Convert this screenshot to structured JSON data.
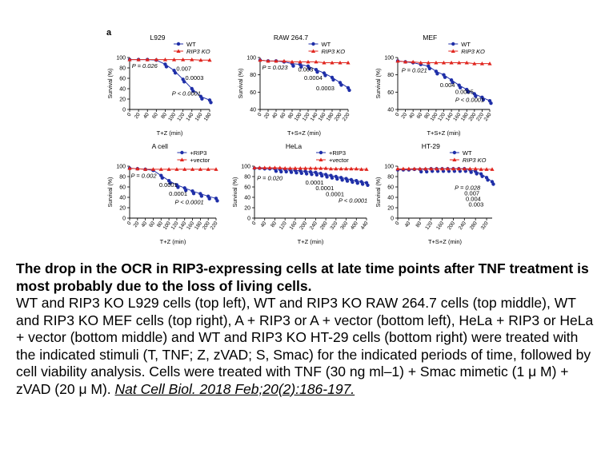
{
  "figure_label": "a",
  "caption": {
    "title": "The drop in the OCR in RIP3-expressing cells at late time points after TNF treatment is most probably due to the loss of living cells.",
    "body": "WT and RIP3 KO L929 cells (top left), WT and RIP3 KO RAW 264.7 cells (top middle), WT and RIP3 KO MEF cells (top right), A + RIP3 or A + vector (bottom left), HeLa + RIP3 or HeLa + vector (bottom middle) and WT and RIP3 KO HT-29 cells (bottom right) were treated with the indicated stimuli (T, TNF; Z, zVAD; S, Smac) for the indicated periods of time, followed by cell viability analysis. Cells were treated with TNF (30 ng ml–1) + Smac mimetic (1 μ M) + zVAD (20 μ M).",
    "citation": "Nat Cell Biol. 2018 Feb;20(2):186-197."
  },
  "colors": {
    "blue": "#1f2fa8",
    "red": "#e0251e",
    "axis": "#000000"
  },
  "chart_data": [
    {
      "type": "scatter",
      "title": "L929",
      "xlabel": "T+Z (min)",
      "ylabel": "Survival (%)",
      "ylim": [
        0,
        100
      ],
      "yticks": [
        0,
        20,
        40,
        60,
        80,
        100
      ],
      "xlim": [
        0,
        180
      ],
      "xticks": [
        0,
        20,
        40,
        60,
        80,
        100,
        120,
        140,
        160,
        180
      ],
      "legend": {
        "position": "top-right",
        "entries": [
          "WT",
          "RIP3 KO"
        ]
      },
      "series": [
        {
          "name": "WT",
          "color": "blue",
          "x": [
            0,
            20,
            40,
            60,
            80,
            100,
            120,
            140,
            160,
            180
          ],
          "y": [
            96,
            96,
            96,
            95,
            87,
            75,
            58,
            40,
            25,
            18
          ]
        },
        {
          "name": "RIP3 KO",
          "color": "red",
          "x": [
            0,
            20,
            40,
            60,
            80,
            100,
            120,
            140,
            160,
            180
          ],
          "y": [
            96,
            96,
            96,
            96,
            96,
            96,
            96,
            96,
            95,
            95
          ]
        }
      ],
      "annotations": [
        {
          "text": "P = 0.026",
          "x": 5,
          "y": 80
        },
        {
          "text": "0.007",
          "x": 105,
          "y": 75
        },
        {
          "text": "0.0003",
          "x": 125,
          "y": 57
        },
        {
          "text": "P < 0.0001",
          "x": 95,
          "y": 27
        }
      ]
    },
    {
      "type": "scatter",
      "title": "RAW 264.7",
      "xlabel": "T+S+Z (min)",
      "ylabel": "Survival (%)",
      "ylim": [
        40,
        100
      ],
      "yticks": [
        40,
        60,
        80,
        100
      ],
      "xlim": [
        0,
        220
      ],
      "xticks": [
        0,
        20,
        40,
        60,
        80,
        100,
        120,
        140,
        160,
        180,
        200,
        220
      ],
      "legend": {
        "position": "top-right",
        "entries": [
          "WT",
          "RIP3 KO"
        ]
      },
      "series": [
        {
          "name": "WT",
          "color": "blue",
          "x": [
            0,
            20,
            40,
            60,
            80,
            100,
            120,
            140,
            160,
            180,
            200,
            220
          ],
          "y": [
            97,
            96,
            96,
            95,
            93,
            92,
            90,
            86,
            82,
            77,
            71,
            65
          ]
        },
        {
          "name": "RIP3 KO",
          "color": "red",
          "x": [
            0,
            20,
            40,
            60,
            80,
            100,
            120,
            140,
            160,
            180,
            200,
            220
          ],
          "y": [
            97,
            96,
            96,
            96,
            95,
            95,
            95,
            95,
            94,
            94,
            94,
            94
          ]
        }
      ],
      "annotations": [
        {
          "text": "P = 0.023",
          "x": 5,
          "y": 86
        },
        {
          "text": "0.003",
          "x": 95,
          "y": 84
        },
        {
          "text": "0.0004",
          "x": 110,
          "y": 74
        },
        {
          "text": "0.0003",
          "x": 140,
          "y": 62
        }
      ]
    },
    {
      "type": "scatter",
      "title": "MEF",
      "xlabel": "T+S+Z (min)",
      "ylabel": "Survival (%)",
      "ylim": [
        40,
        100
      ],
      "yticks": [
        40,
        60,
        80,
        100
      ],
      "xlim": [
        0,
        240
      ],
      "xticks": [
        0,
        20,
        40,
        60,
        80,
        100,
        120,
        140,
        160,
        180,
        200,
        220,
        240
      ],
      "legend": {
        "position": "top-right",
        "entries": [
          "WT",
          "RIP3 KO"
        ]
      },
      "series": [
        {
          "name": "WT",
          "color": "blue",
          "x": [
            0,
            20,
            40,
            60,
            80,
            100,
            120,
            140,
            160,
            180,
            200,
            220,
            240
          ],
          "y": [
            96,
            95,
            94,
            92,
            90,
            84,
            80,
            74,
            68,
            63,
            58,
            54,
            50
          ]
        },
        {
          "name": "RIP3 KO",
          "color": "red",
          "x": [
            0,
            20,
            40,
            60,
            80,
            100,
            120,
            140,
            160,
            180,
            200,
            220,
            240
          ],
          "y": [
            96,
            95,
            95,
            94,
            94,
            94,
            94,
            94,
            94,
            94,
            93,
            93,
            93
          ]
        }
      ],
      "annotations": [
        {
          "text": "P = 0.021",
          "x": 10,
          "y": 83
        },
        {
          "text": "0.004",
          "x": 110,
          "y": 66
        },
        {
          "text": "0.0005",
          "x": 150,
          "y": 58
        },
        {
          "text": "P < 0.0001",
          "x": 150,
          "y": 49
        }
      ]
    },
    {
      "type": "scatter",
      "title": "A cell",
      "xlabel": "T+Z (min)",
      "ylabel": "Survival (%)",
      "ylim": [
        0,
        100
      ],
      "yticks": [
        0,
        20,
        40,
        60,
        80,
        100
      ],
      "xlim": [
        0,
        220
      ],
      "xticks": [
        0,
        20,
        40,
        60,
        80,
        100,
        120,
        140,
        160,
        180,
        200,
        220
      ],
      "legend": {
        "position": "top-right",
        "entries": [
          "+RIP3",
          "+vector"
        ]
      },
      "series": [
        {
          "name": "+RIP3",
          "color": "blue",
          "x": [
            0,
            20,
            40,
            60,
            80,
            100,
            120,
            140,
            160,
            180,
            200,
            220
          ],
          "y": [
            96,
            95,
            94,
            92,
            82,
            72,
            64,
            58,
            52,
            47,
            42,
            38
          ]
        },
        {
          "name": "+vector",
          "color": "red",
          "x": [
            0,
            20,
            40,
            60,
            80,
            100,
            120,
            140,
            160,
            180,
            200,
            220
          ],
          "y": [
            96,
            95,
            94,
            94,
            94,
            94,
            94,
            94,
            94,
            94,
            94,
            94
          ]
        }
      ],
      "annotations": [
        {
          "text": "P = 0.002",
          "x": 3,
          "y": 78
        },
        {
          "text": "0.0001",
          "x": 75,
          "y": 60
        },
        {
          "text": "0.0001",
          "x": 100,
          "y": 43
        },
        {
          "text": "P < 0.0001",
          "x": 115,
          "y": 27
        }
      ]
    },
    {
      "type": "scatter",
      "title": "HeLa",
      "xlabel": "T+Z (min)",
      "ylabel": "Survival (%)",
      "ylim": [
        0,
        100
      ],
      "yticks": [
        0,
        20,
        40,
        60,
        80,
        100
      ],
      "xlim": [
        0,
        440
      ],
      "xticks": [
        0,
        40,
        80,
        120,
        160,
        200,
        240,
        280,
        320,
        360,
        400,
        440
      ],
      "legend": {
        "position": "top-right",
        "entries": [
          "+RIP3",
          "+vector"
        ]
      },
      "series": [
        {
          "name": "+RIP3",
          "color": "blue",
          "x": [
            0,
            20,
            40,
            60,
            80,
            100,
            120,
            140,
            160,
            180,
            200,
            220,
            240,
            260,
            280,
            300,
            320,
            340,
            360,
            380,
            400,
            420,
            440
          ],
          "y": [
            96,
            96,
            95,
            95,
            95,
            94,
            94,
            93,
            92,
            91,
            90,
            89,
            88,
            86,
            84,
            82,
            80,
            78,
            76,
            74,
            72,
            70,
            68
          ]
        },
        {
          "name": "+vector",
          "color": "red",
          "x": [
            0,
            20,
            40,
            60,
            80,
            100,
            120,
            140,
            160,
            180,
            200,
            220,
            240,
            260,
            280,
            300,
            320,
            340,
            360,
            380,
            400,
            420,
            440
          ],
          "y": [
            97,
            97,
            97,
            97,
            97,
            97,
            96,
            96,
            96,
            96,
            96,
            96,
            96,
            96,
            96,
            95,
            95,
            95,
            95,
            95,
            95,
            94,
            94
          ]
        }
      ],
      "annotations": [
        {
          "text": "P = 0.020",
          "x": 10,
          "y": 73
        },
        {
          "text": "0.0001",
          "x": 200,
          "y": 65
        },
        {
          "text": "0.0001",
          "x": 240,
          "y": 54
        },
        {
          "text": "0.0001",
          "x": 280,
          "y": 42
        },
        {
          "text": "P < 0.0001",
          "x": 330,
          "y": 30
        }
      ]
    },
    {
      "type": "scatter",
      "title": "HT-29",
      "xlabel": "T+S+Z (min)",
      "ylabel": "Survival (%)",
      "ylim": [
        0,
        100
      ],
      "yticks": [
        0,
        20,
        40,
        60,
        80,
        100
      ],
      "xlim": [
        0,
        340
      ],
      "xticks": [
        0,
        40,
        80,
        120,
        160,
        200,
        240,
        280,
        320
      ],
      "legend": {
        "position": "top-right",
        "entries": [
          "WT",
          "RIP3 KO"
        ]
      },
      "series": [
        {
          "name": "WT",
          "color": "blue",
          "x": [
            0,
            20,
            40,
            60,
            80,
            100,
            120,
            140,
            160,
            180,
            200,
            220,
            240,
            260,
            280,
            300,
            320,
            340
          ],
          "y": [
            93,
            93,
            93,
            94,
            94,
            94,
            95,
            95,
            95,
            95,
            95,
            95,
            95,
            93,
            90,
            85,
            78,
            70
          ]
        },
        {
          "name": "RIP3 KO",
          "color": "red",
          "x": [
            0,
            20,
            40,
            60,
            80,
            100,
            120,
            140,
            160,
            180,
            200,
            220,
            240,
            260,
            280,
            300,
            320,
            340
          ],
          "y": [
            95,
            95,
            95,
            95,
            95,
            95,
            95,
            95,
            95,
            95,
            95,
            95,
            95,
            95,
            95,
            94,
            94,
            94
          ]
        }
      ],
      "annotations": [
        {
          "text": "P = 0.028",
          "x": 205,
          "y": 55
        },
        {
          "text": "0.007",
          "x": 240,
          "y": 44
        },
        {
          "text": "0.004",
          "x": 245,
          "y": 33
        },
        {
          "text": "0.003",
          "x": 255,
          "y": 22
        }
      ]
    }
  ]
}
